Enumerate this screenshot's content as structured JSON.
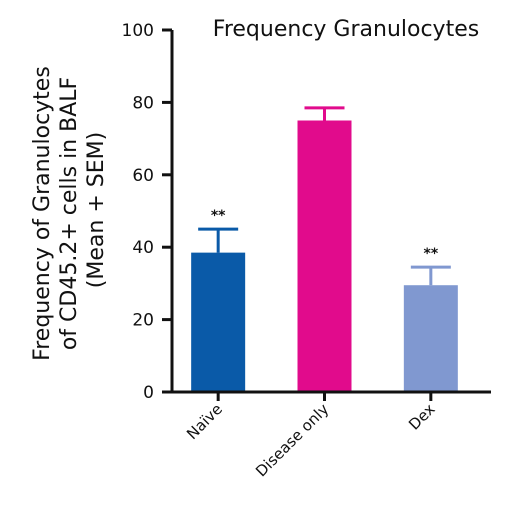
{
  "chart_data": {
    "type": "bar",
    "title": "Frequency Granulocytes",
    "ylabel_lines": [
      "Frequency of Granulocytes",
      "of CD45.2+ cells in BALF",
      "(Mean + SEM)"
    ],
    "categories": [
      "Naïve",
      "Disease only",
      "Dex"
    ],
    "values": [
      38.5,
      75,
      29.5
    ],
    "errors": [
      6.5,
      3.5,
      5
    ],
    "significance": [
      "**",
      "",
      "**"
    ],
    "colors": [
      "#0a5aa8",
      "#e10b8c",
      "#8098d0"
    ],
    "ylim": [
      0,
      100
    ],
    "yticks": [
      0,
      20,
      40,
      60,
      80,
      100
    ],
    "grid": false
  }
}
